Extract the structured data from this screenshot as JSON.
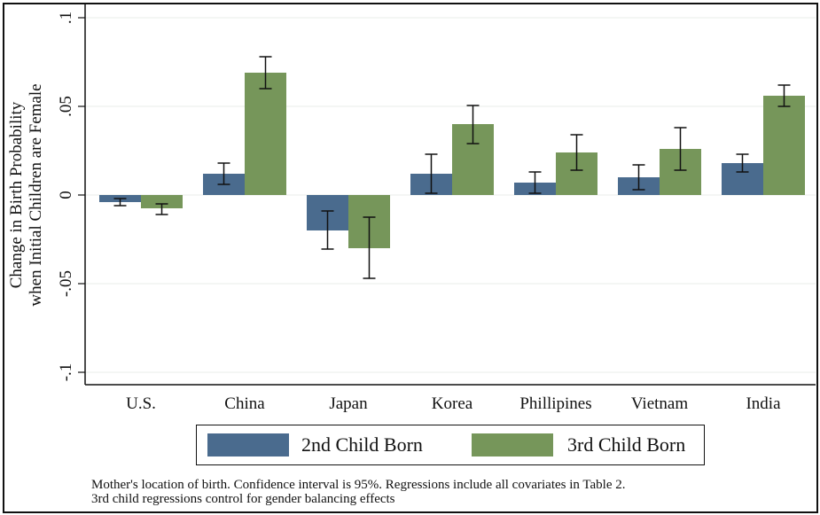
{
  "chart_data": {
    "type": "bar",
    "title": "",
    "xlabel": "",
    "ylabel": "Change in Birth Probability when Initial Children are Female",
    "ylabel_lines": [
      "Change in Birth Probability",
      "when Initial Children are Female"
    ],
    "ylim": [
      -0.1,
      0.1
    ],
    "yticks": [
      -0.1,
      -0.05,
      0,
      0.05,
      0.1
    ],
    "ytick_labels": [
      "-.1",
      "-.05",
      "0",
      ".05",
      ".1"
    ],
    "grid": true,
    "categories": [
      "U.S.",
      "China",
      "Japan",
      "Korea",
      "Phillipines",
      "Vietnam",
      "India"
    ],
    "series": [
      {
        "name": "2nd Child Born",
        "color": "#4a6b8e",
        "values": [
          -0.004,
          0.012,
          -0.02,
          0.012,
          0.007,
          0.01,
          0.018
        ],
        "ci_low": [
          -0.006,
          0.006,
          -0.0305,
          0.001,
          0.001,
          0.003,
          0.013
        ],
        "ci_high": [
          -0.002,
          0.018,
          -0.009,
          0.023,
          0.013,
          0.017,
          0.023
        ]
      },
      {
        "name": "3rd Child Born",
        "color": "#76965a",
        "values": [
          -0.0075,
          0.069,
          -0.03,
          0.04,
          0.024,
          0.026,
          0.056
        ],
        "ci_low": [
          -0.011,
          0.06,
          -0.047,
          0.029,
          0.014,
          0.014,
          0.05
        ],
        "ci_high": [
          -0.005,
          0.078,
          -0.0125,
          0.0505,
          0.034,
          0.038,
          0.062
        ]
      }
    ],
    "legend_position": "bottom",
    "error_bars": "95% confidence interval"
  },
  "note": {
    "line1": "Mother's location of birth. Confidence interval is 95%. Regressions include all covariates in Table 2.",
    "line2": "3rd child regressions control for gender balancing effects"
  }
}
